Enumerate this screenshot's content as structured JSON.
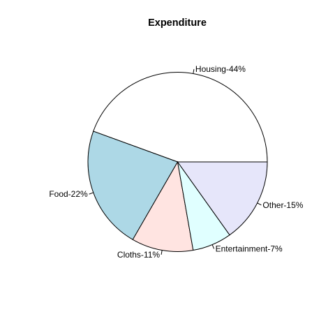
{
  "chart_data": {
    "type": "pie",
    "title": "Expenditure",
    "slices": [
      {
        "label": "Housing-44%",
        "category": "Housing",
        "value": 44,
        "color": "#ffffff"
      },
      {
        "label": "Food-22%",
        "category": "Food",
        "value": 22,
        "color": "#add8e6"
      },
      {
        "label": "Cloths-11%",
        "category": "Cloths",
        "value": 11,
        "color": "#ffe4e1"
      },
      {
        "label": "Entertainment-7%",
        "category": "Entertainment",
        "value": 7,
        "color": "#e0ffff"
      },
      {
        "label": "Other-15%",
        "category": "Other",
        "value": 15,
        "color": "#e6e6fa"
      }
    ],
    "start_angle": "3 o'clock",
    "direction": "counter-clockwise",
    "legend": "none"
  }
}
